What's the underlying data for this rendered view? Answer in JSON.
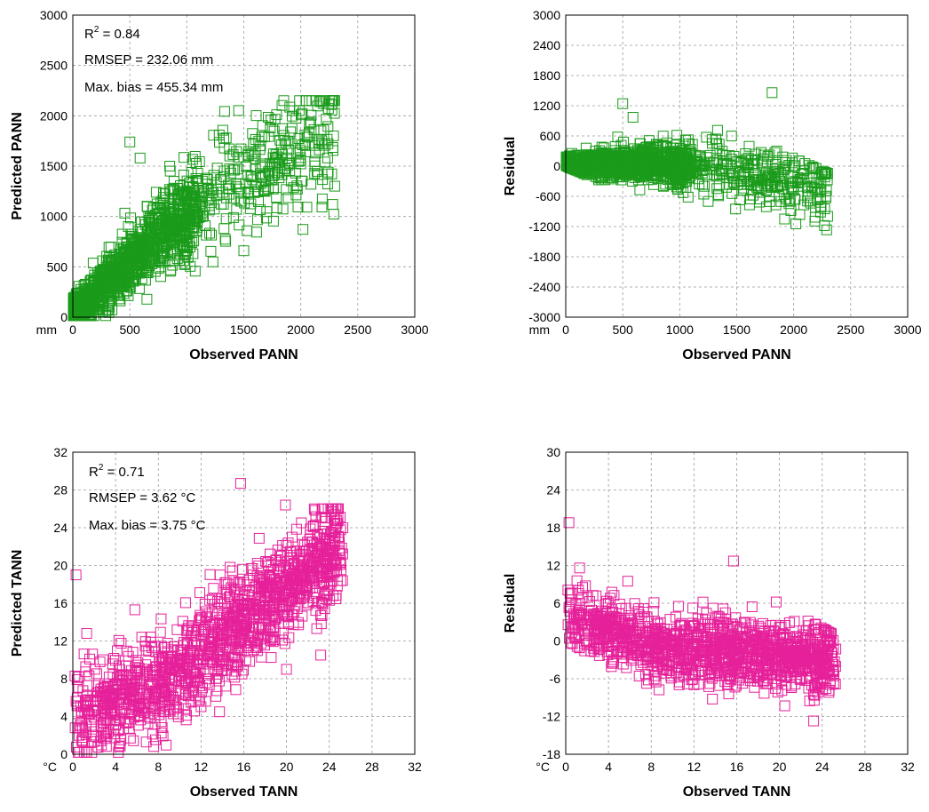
{
  "colors": {
    "green": "#1a9b1a",
    "magenta": "#e6219a"
  },
  "chart_data": [
    {
      "id": "p1",
      "type": "scatter",
      "marker": "open-square",
      "color": "#1a9b1a",
      "xlabel": "Observed PANN",
      "ylabel": "Predicted PANN",
      "unit": "mm",
      "xlim": [
        0,
        3000
      ],
      "ylim": [
        0,
        3000
      ],
      "xticks": [
        "0",
        "500",
        "1000",
        "1500",
        "2000",
        "2500",
        "3000"
      ],
      "yticks": [
        "0",
        "500",
        "1000",
        "1500",
        "2000",
        "2500",
        "3000"
      ],
      "grid": true,
      "annotations": {
        "r2_base": "R",
        "r2_exp": "2",
        "r2_value": " = 0.84",
        "rmsep": "RMSEP = 232.06 mm",
        "maxbias": "Max. bias = 455.34 mm"
      },
      "generator": {
        "n": 1400,
        "seed": 11,
        "kind": "pred",
        "var": "P"
      },
      "outliers": [
        [
          500,
          1740
        ],
        [
          590,
          1580
        ],
        [
          850,
          1500
        ],
        [
          1500,
          660
        ],
        [
          1230,
          550
        ],
        [
          2280,
          1120
        ],
        [
          2200,
          2120
        ]
      ]
    },
    {
      "id": "p2",
      "type": "scatter",
      "marker": "open-square",
      "color": "#1a9b1a",
      "xlabel": "Observed PANN",
      "ylabel": "Residual",
      "unit": "mm",
      "xlim": [
        0,
        3000
      ],
      "ylim": [
        -3000,
        3000
      ],
      "xticks": [
        "0",
        "500",
        "1000",
        "1500",
        "2000",
        "2500",
        "3000"
      ],
      "yticks": [
        "-3000",
        "-2400",
        "-1800",
        "-1200",
        "-600",
        "0",
        "600",
        "1200",
        "1800",
        "2400",
        "3000"
      ],
      "grid": true,
      "generator": {
        "n": 1400,
        "seed": 11,
        "kind": "resid",
        "var": "P"
      },
      "outliers": [
        [
          500,
          1240
        ],
        [
          590,
          970
        ],
        [
          1810,
          1460
        ],
        [
          2270,
          -1180
        ],
        [
          1920,
          -1050
        ],
        [
          1250,
          -700
        ],
        [
          1490,
          -850
        ]
      ]
    },
    {
      "id": "p3",
      "type": "scatter",
      "marker": "open-square",
      "color": "#e6219a",
      "xlabel": "Observed TANN",
      "ylabel": "Predicted TANN",
      "unit": "°C",
      "xlim": [
        0,
        32
      ],
      "ylim": [
        0,
        32
      ],
      "xticks": [
        "0",
        "4",
        "8",
        "12",
        "16",
        "20",
        "24",
        "28",
        "32"
      ],
      "yticks": [
        "0",
        "4",
        "8",
        "12",
        "16",
        "20",
        "24",
        "28",
        "32"
      ],
      "grid": true,
      "annotations": {
        "r2_base": "R",
        "r2_exp": "2",
        "r2_value": " = 0.71",
        "rmsep": "RMSEP = 3.62 °C",
        "maxbias": "Max. bias = 3.75 °C"
      },
      "generator": {
        "n": 1400,
        "seed": 29,
        "kind": "pred",
        "var": "T"
      },
      "outliers": [
        [
          0.3,
          19
        ],
        [
          1.3,
          12.8
        ],
        [
          5.8,
          15.3
        ],
        [
          15.7,
          28.7
        ],
        [
          19.9,
          26.4
        ],
        [
          22.6,
          26
        ],
        [
          23.2,
          10.5
        ],
        [
          20,
          9
        ]
      ]
    },
    {
      "id": "p4",
      "type": "scatter",
      "marker": "open-square",
      "color": "#e6219a",
      "xlabel": "Observed TANN",
      "ylabel": "Residual",
      "unit": "°C",
      "xlim": [
        0,
        32
      ],
      "ylim": [
        -18,
        30
      ],
      "xticks": [
        "0",
        "4",
        "8",
        "12",
        "16",
        "20",
        "24",
        "28",
        "32"
      ],
      "yticks": [
        "-18",
        "-12",
        "-6",
        "0",
        "6",
        "12",
        "18",
        "24",
        "30"
      ],
      "grid": true,
      "generator": {
        "n": 1400,
        "seed": 29,
        "kind": "resid",
        "var": "T"
      },
      "outliers": [
        [
          0.3,
          18.8
        ],
        [
          1.3,
          11.6
        ],
        [
          5.8,
          9.5
        ],
        [
          15.7,
          12.7
        ],
        [
          23.2,
          -12.7
        ],
        [
          20.5,
          -10.3
        ],
        [
          19.7,
          6.2
        ]
      ]
    }
  ]
}
